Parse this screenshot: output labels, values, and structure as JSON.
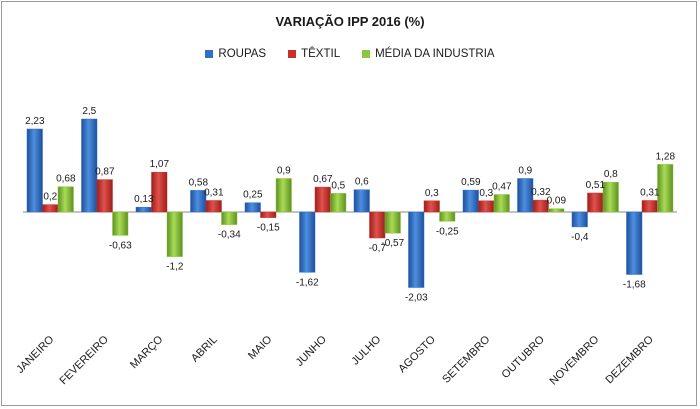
{
  "chart_data": {
    "type": "bar",
    "title": "VARIAÇÃO IPP 2016 (%)",
    "xlabel": "",
    "ylabel": "",
    "ylim": [
      -2.2,
      2.6
    ],
    "grid": false,
    "legend_position": "top-center",
    "categories": [
      "JANEIRO",
      "FEVEREIRO",
      "MARÇO",
      "ABRIL",
      "MAIO",
      "JUNHO",
      "JULHO",
      "AGOSTO",
      "SETEMBRO",
      "OUTUBRO",
      "NOVEMBRO",
      "DEZEMBRO"
    ],
    "series": [
      {
        "name": "ROUPAS",
        "color": "#2f6fc8",
        "values": [
          2.23,
          2.5,
          0.13,
          0.58,
          0.25,
          -1.62,
          0.6,
          -2.03,
          0.59,
          0.9,
          -0.4,
          -1.68
        ],
        "labels": [
          "2,23",
          "2,5",
          "0,13",
          "0,58",
          "0,25",
          "-1,62",
          "0,6",
          "-2,03",
          "0,59",
          "0,9",
          "-0,4",
          "-1,68"
        ]
      },
      {
        "name": "TÊXTIL",
        "color": "#cc2e2a",
        "values": [
          0.2,
          0.87,
          1.07,
          0.31,
          -0.15,
          0.67,
          -0.7,
          0.3,
          0.3,
          0.32,
          0.51,
          0.31
        ],
        "labels": [
          "0,2",
          "0,87",
          "1,07",
          "0,31",
          "-0,15",
          "0,67",
          "-0,7",
          "0,3",
          "0,3",
          "0,32",
          "0,51",
          "0,31"
        ]
      },
      {
        "name": "MÉDIA DA INDUSTRIA",
        "color": "#8cc63f",
        "values": [
          0.68,
          -0.63,
          -1.2,
          -0.34,
          0.9,
          0.5,
          -0.57,
          -0.25,
          0.47,
          0.09,
          0.8,
          1.28
        ],
        "labels": [
          "0,68",
          "-0,63",
          "-1,2",
          "-0,34",
          "0,9",
          "0,5",
          "-0,57",
          "-0,25",
          "0,47",
          "0,09",
          "0,8",
          "1,28"
        ]
      }
    ]
  }
}
